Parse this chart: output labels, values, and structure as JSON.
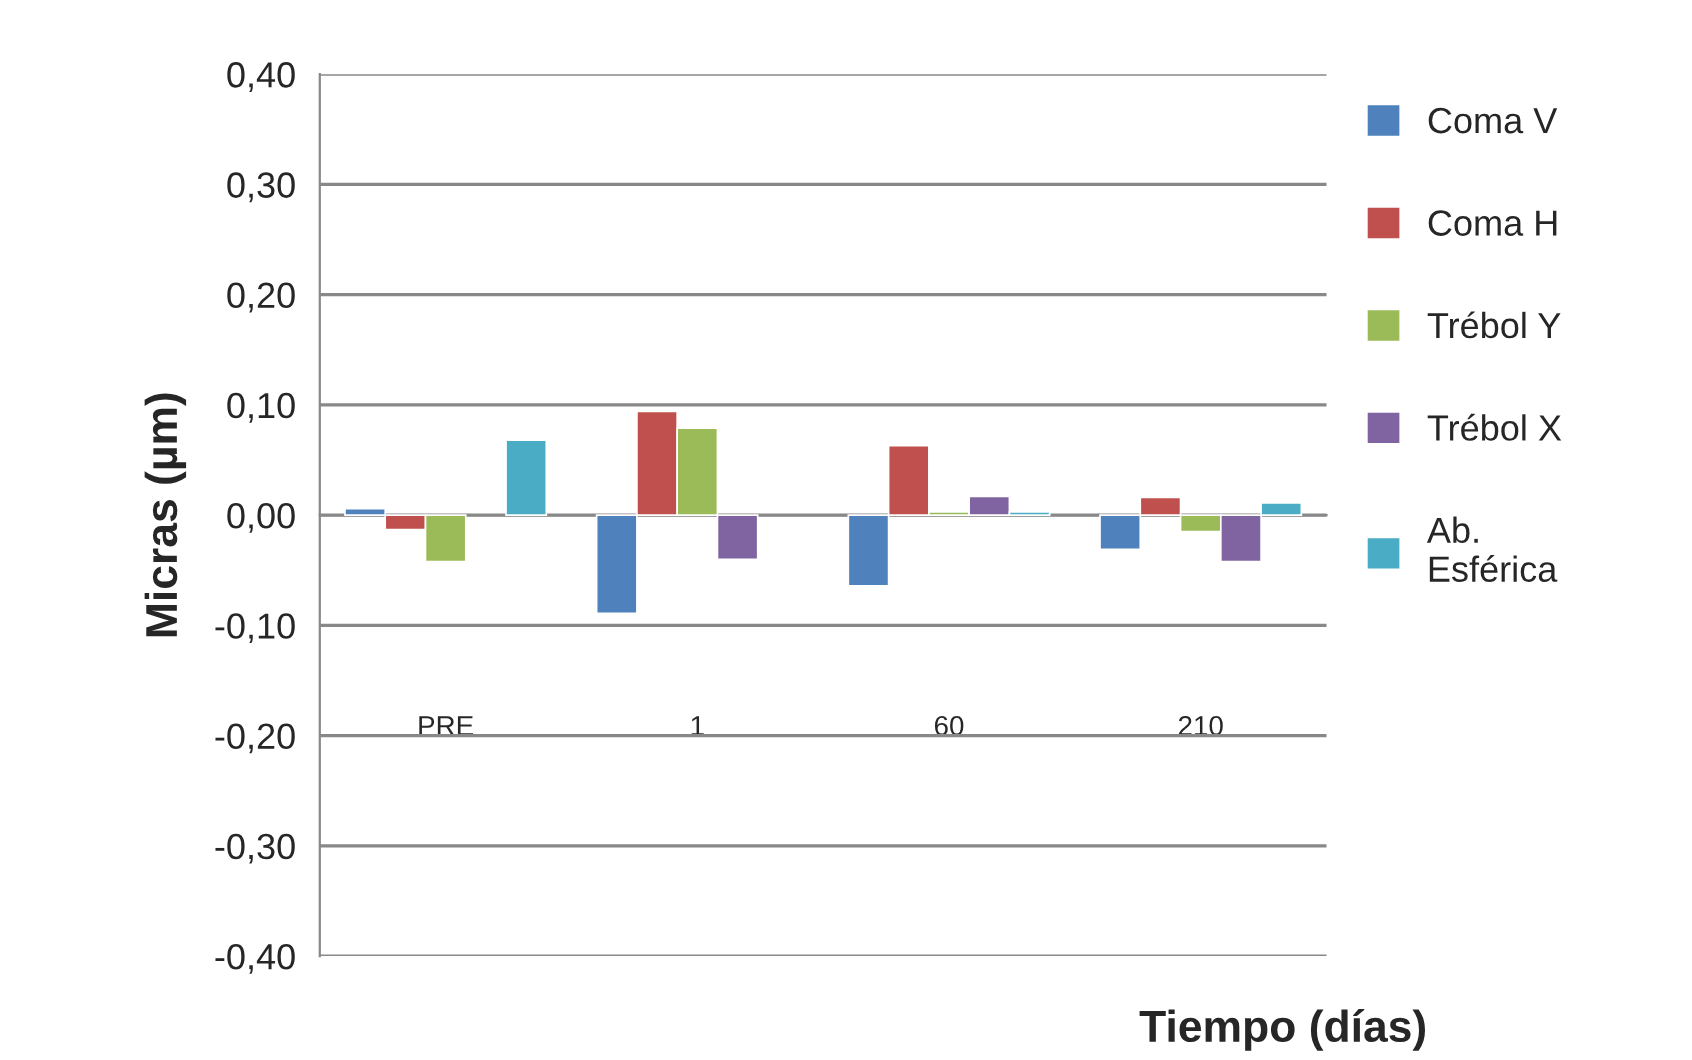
{
  "chart_data": {
    "type": "bar",
    "xlabel": "Tiempo (días)",
    "ylabel": "Micras (µm)",
    "categories": [
      "PRE",
      "1",
      "60",
      "210"
    ],
    "series": [
      {
        "name": "Coma V",
        "color": "#4f81bd",
        "values": [
          0.006,
          -0.089,
          -0.064,
          -0.031
        ]
      },
      {
        "name": "Coma H",
        "color": "#c0504d",
        "values": [
          -0.013,
          0.094,
          0.063,
          0.016
        ]
      },
      {
        "name": "Trébol Y",
        "color": "#9bbb59",
        "values": [
          -0.042,
          0.079,
          0.003,
          -0.015
        ]
      },
      {
        "name": "Trébol X",
        "color": "#8064a2",
        "values": [
          null,
          -0.04,
          0.017,
          -0.042
        ]
      },
      {
        "name": "Ab.\nEsférica",
        "color": "#4bacc6",
        "values": [
          0.068,
          null,
          0.003,
          0.011
        ]
      }
    ],
    "ylim": [
      -0.4,
      0.4
    ],
    "yticks": [
      {
        "value": -0.4,
        "label": "-0,40"
      },
      {
        "value": -0.3,
        "label": "-0,30"
      },
      {
        "value": -0.2,
        "label": "-0,20"
      },
      {
        "value": -0.1,
        "label": "-0,10"
      },
      {
        "value": 0,
        "label": "0,00"
      },
      {
        "value": 0.1,
        "label": "0,10"
      },
      {
        "value": 0.2,
        "label": "0,20"
      },
      {
        "value": 0.3,
        "label": "0,30"
      },
      {
        "value": 0.4,
        "label": "0,40"
      }
    ],
    "grid": "y",
    "legend": "right"
  }
}
